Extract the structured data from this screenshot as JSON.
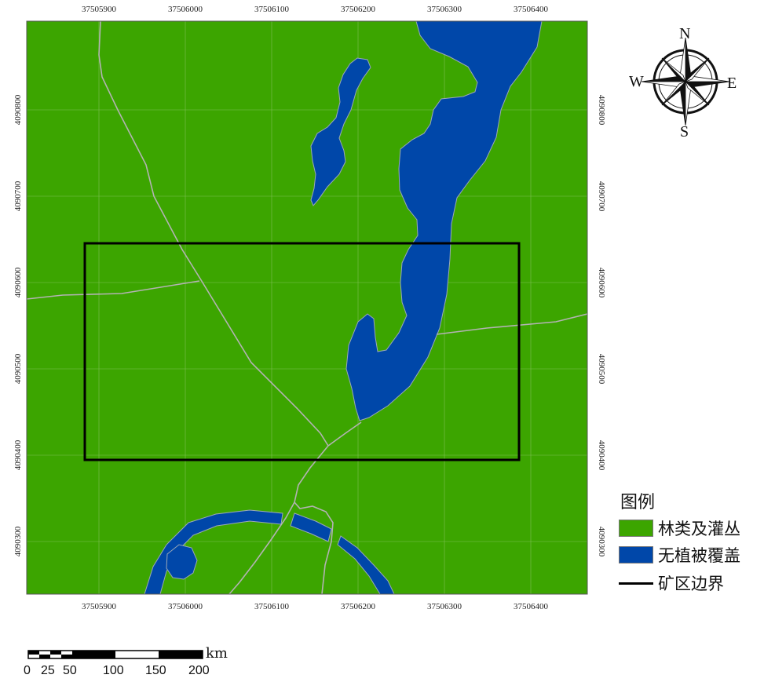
{
  "map": {
    "ticks_x": [
      "37505900",
      "37506000",
      "37506100",
      "37506200",
      "37506300",
      "37506400"
    ],
    "ticks_y": [
      "4090800",
      "4090700",
      "4090600",
      "4090500",
      "4090400",
      "4090300"
    ],
    "colors": {
      "forest": "#3ca500",
      "water": "#0047a9",
      "road": "#b0b0b0",
      "boundary": "#000000"
    }
  },
  "legend": {
    "title": "图例",
    "items": [
      {
        "label": "林类及灌丛",
        "type": "swatch",
        "color": "#3ca500"
      },
      {
        "label": "无植被覆盖",
        "type": "swatch",
        "color": "#0047a9"
      },
      {
        "label": "矿区边界",
        "type": "line",
        "color": "#000000"
      }
    ]
  },
  "scale_bar": {
    "unit": "km",
    "labels": [
      "0",
      "25",
      "50",
      "100",
      "150",
      "200"
    ]
  },
  "compass": {
    "n": "N",
    "s": "S",
    "e": "E",
    "w": "W"
  }
}
